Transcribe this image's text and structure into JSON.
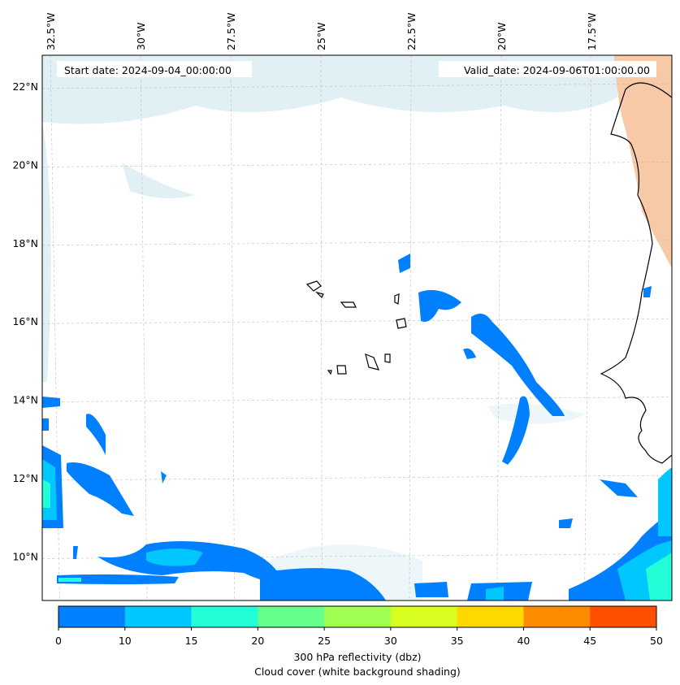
{
  "chart_data": {
    "type": "heatmap",
    "title_left": "Start date: 2024-09-04_00:00:00",
    "title_right": "Valid_date: 2024-09-06T01:00:00.00",
    "lon_ticks": [
      {
        "value": -32.5,
        "label": "32.5°W"
      },
      {
        "value": -30,
        "label": "30°W"
      },
      {
        "value": -27.5,
        "label": "27.5°W"
      },
      {
        "value": -25,
        "label": "25°W"
      },
      {
        "value": -22.5,
        "label": "22.5°W"
      },
      {
        "value": -20,
        "label": "20°W"
      },
      {
        "value": -17.5,
        "label": "17.5°W"
      }
    ],
    "lat_ticks": [
      {
        "value": 22,
        "label": "22°N"
      },
      {
        "value": 20,
        "label": "20°N"
      },
      {
        "value": 18,
        "label": "18°N"
      },
      {
        "value": 16,
        "label": "16°N"
      },
      {
        "value": 14,
        "label": "14°N"
      },
      {
        "value": 12,
        "label": "12°N"
      },
      {
        "value": 10,
        "label": "10°N"
      }
    ],
    "colorbar": {
      "bounds": [
        0,
        10,
        15,
        20,
        25,
        30,
        35,
        40,
        45,
        50
      ],
      "tick_labels": [
        "0",
        "10",
        "15",
        "20",
        "25",
        "30",
        "35",
        "40",
        "45",
        "50"
      ],
      "colors": [
        "#0080ff",
        "#00c8ff",
        "#22ffd8",
        "#66ff8c",
        "#a0ff50",
        "#d8ff20",
        "#ffd800",
        "#ff8c00",
        "#ff5000"
      ],
      "label_line1": "300 hPa reflectivity (dbz)",
      "label_line2": "Cloud cover (white background shading)"
    }
  }
}
